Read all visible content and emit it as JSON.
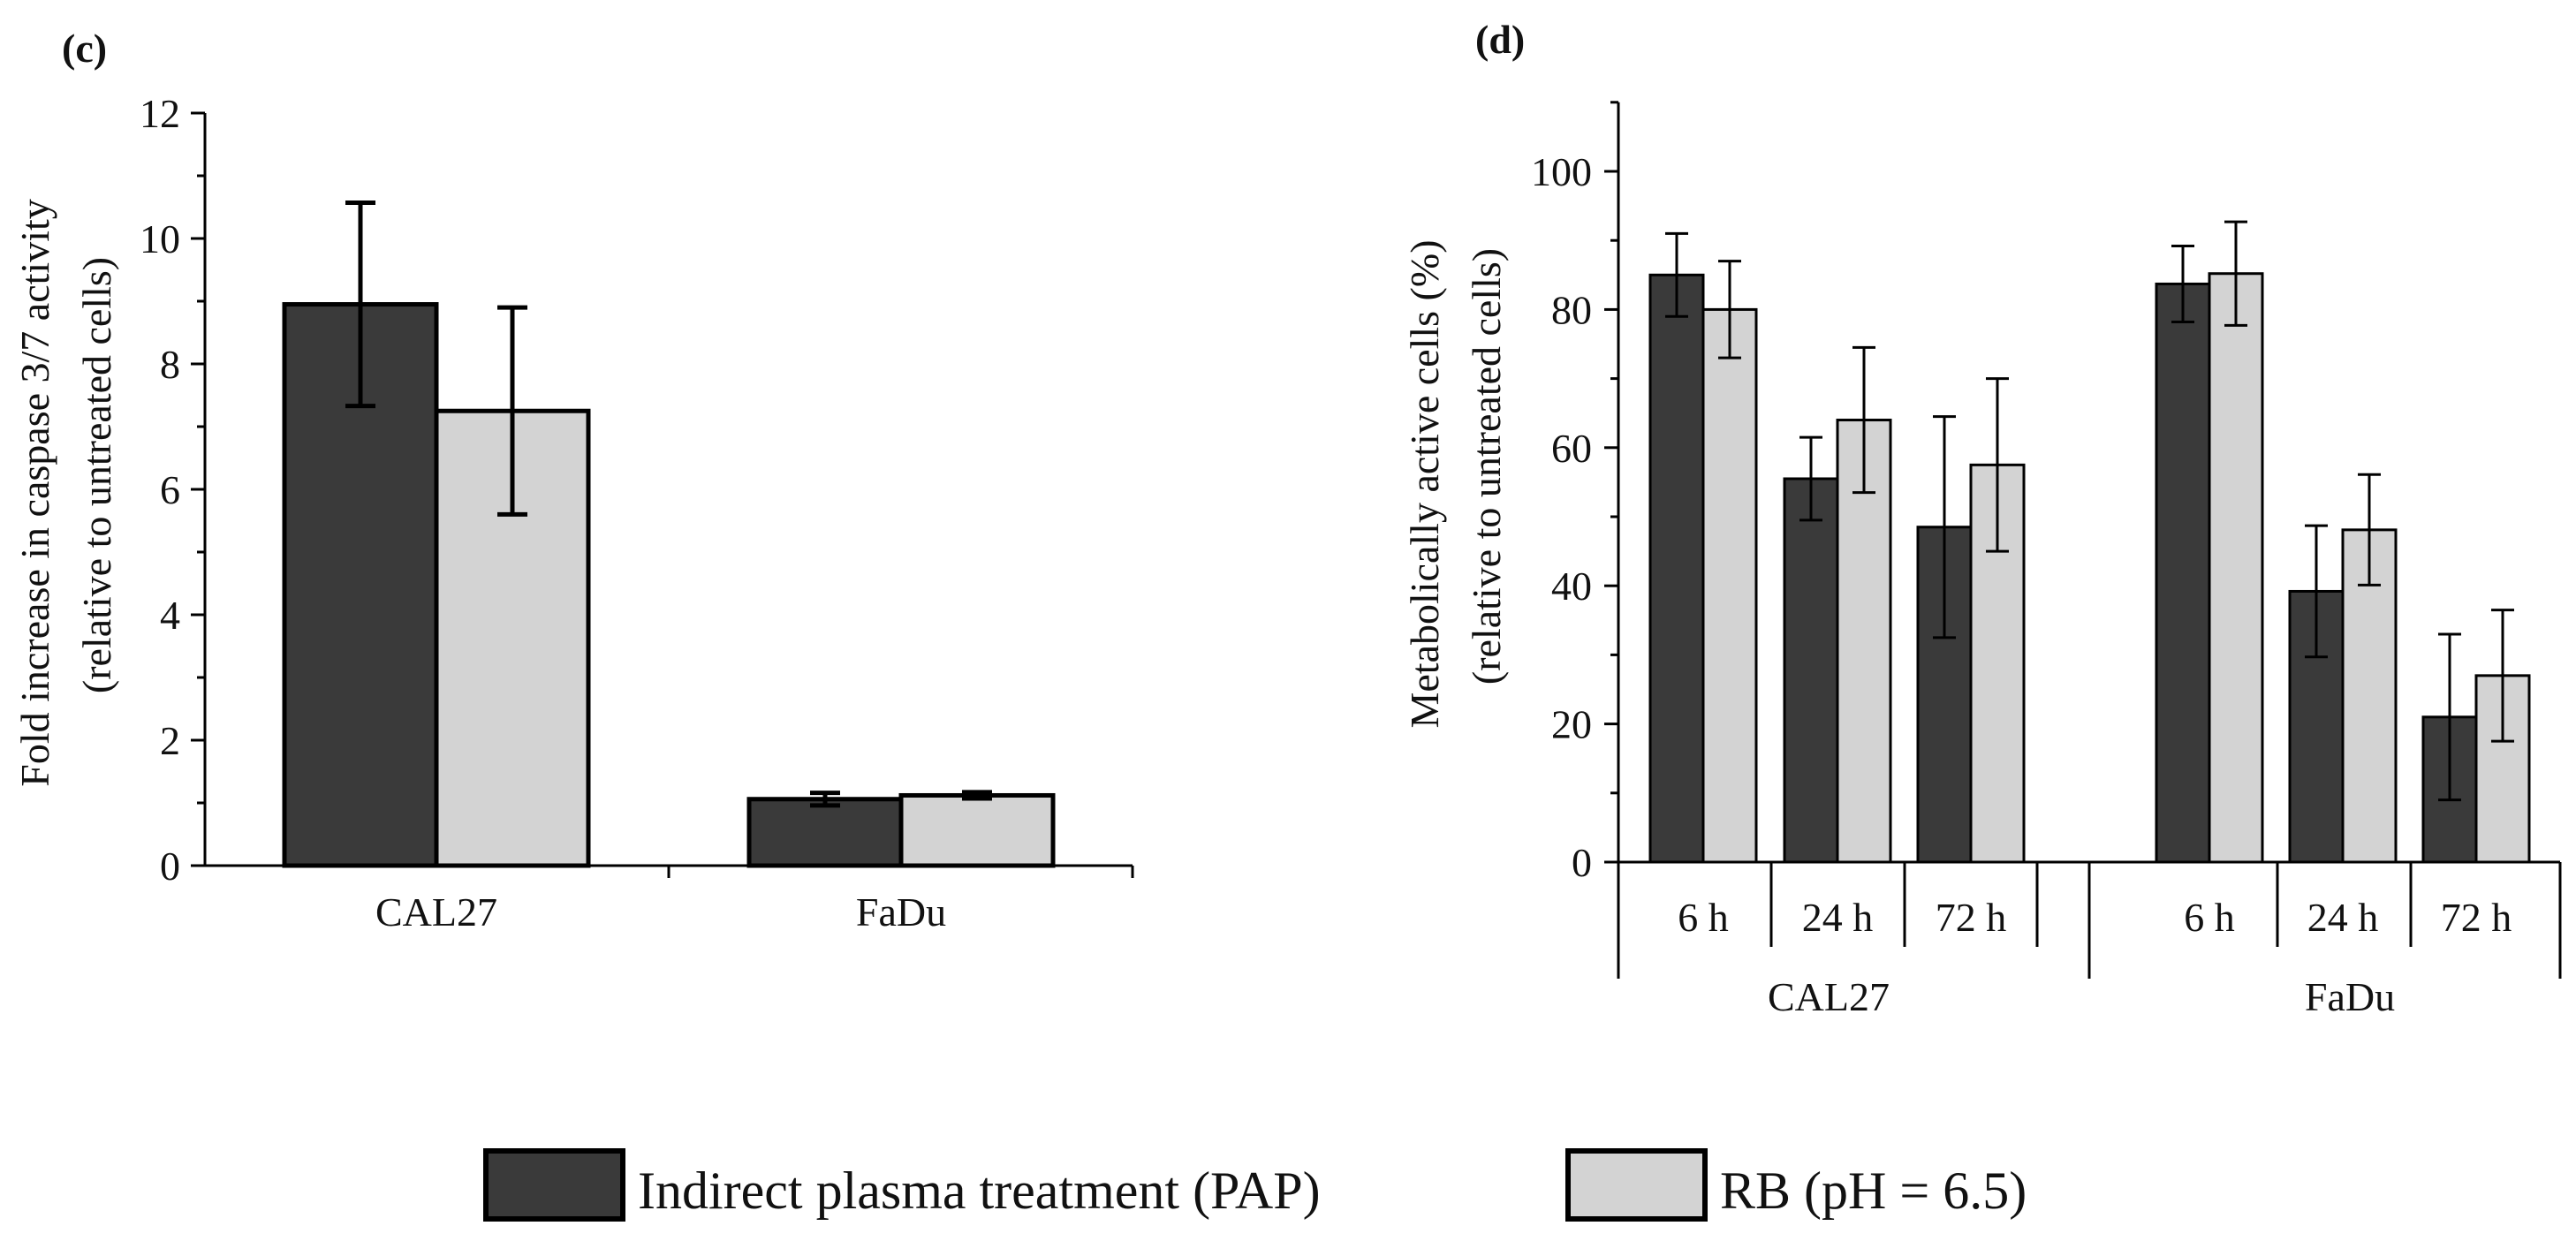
{
  "colors": {
    "pap": "#3a3a3a",
    "rb": "#d3d3d3",
    "stroke": "#000000"
  },
  "legend": [
    {
      "name": "Indirect plasma treatment (PAP)",
      "color": "#3a3a3a"
    },
    {
      "name": "RB (pH = 6.5)",
      "color": "#d3d3d3"
    }
  ],
  "chart_data": [
    {
      "panel": "(c)",
      "type": "bar",
      "ylabel_line1": "Fold increase in caspase 3/7 activity",
      "ylabel_line2": "(relative to untreated cells)",
      "ylim": [
        0,
        12
      ],
      "yticks": [
        0,
        2,
        4,
        6,
        8,
        10,
        12
      ],
      "categories": [
        "CAL27",
        "FaDu"
      ],
      "series": [
        {
          "name": "Indirect plasma treatment (PAP)",
          "values": [
            8.95,
            1.06
          ],
          "errors": [
            1.62,
            0.1
          ]
        },
        {
          "name": "RB (pH = 6.5)",
          "values": [
            7.25,
            1.12
          ],
          "errors": [
            1.65,
            0.05
          ]
        }
      ]
    },
    {
      "panel": "(d)",
      "type": "bar",
      "ylabel_line1": "Metabolically active cells (%)",
      "ylabel_line2": "(relative to untreated cells)",
      "ylim": [
        0,
        110
      ],
      "yticks": [
        0,
        20,
        40,
        60,
        80,
        100
      ],
      "groups": [
        "CAL27",
        "FaDu"
      ],
      "subcategories": [
        "6 h",
        "24 h",
        "72 h"
      ],
      "series": [
        {
          "name": "Indirect plasma treatment (PAP)",
          "values": [
            85,
            55.5,
            48.5,
            83.7,
            39.2,
            21
          ],
          "errors": [
            6,
            6,
            16,
            5.5,
            9.5,
            12
          ]
        },
        {
          "name": "RB (pH = 6.5)",
          "values": [
            80,
            64,
            57.5,
            85.2,
            48.1,
            27
          ],
          "errors": [
            7,
            10.5,
            12.5,
            7.5,
            8,
            9.5
          ]
        }
      ]
    }
  ]
}
